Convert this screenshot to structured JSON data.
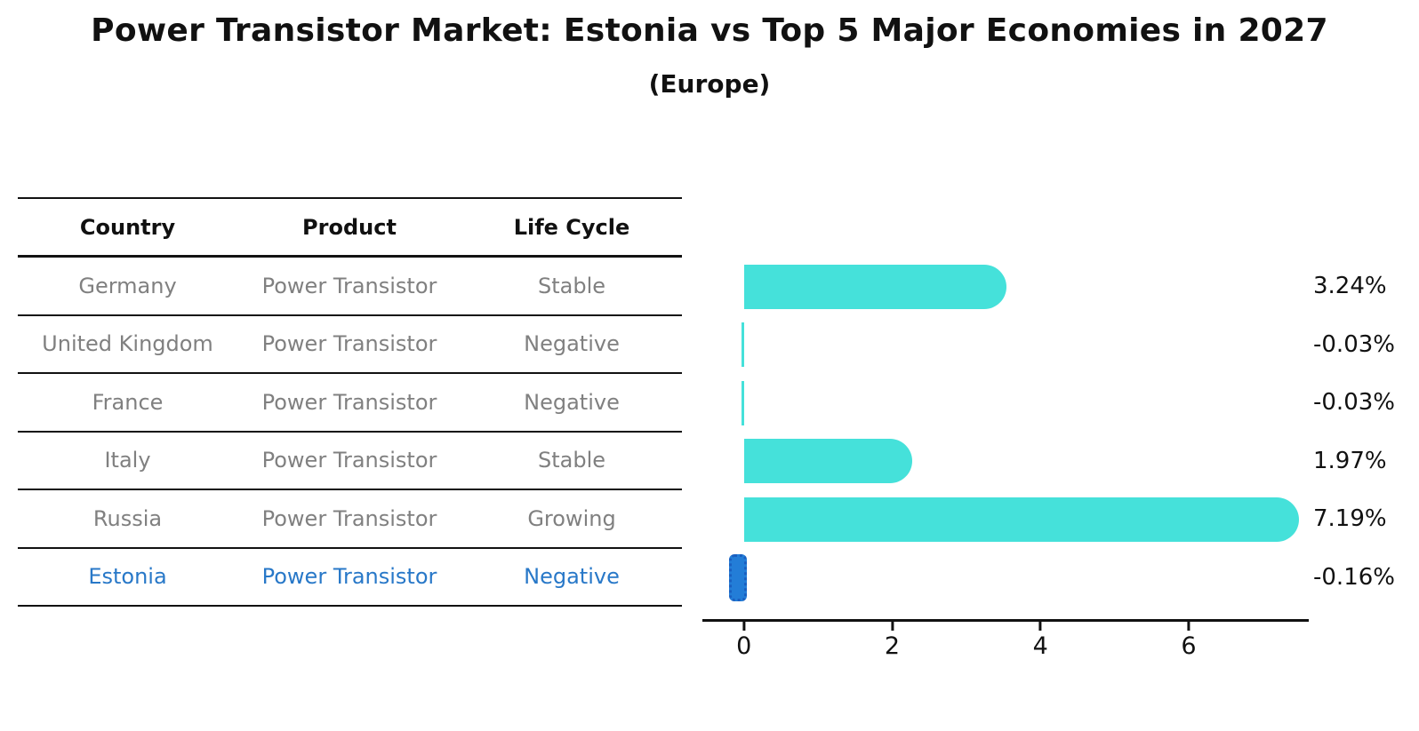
{
  "title": "Power Transistor Market: Estonia vs Top 5 Major Economies in 2027",
  "subtitle": "(Europe)",
  "table": {
    "headers": [
      "Country",
      "Product",
      "Life Cycle"
    ],
    "rows": [
      {
        "country": "Germany",
        "product": "Power Transistor",
        "life_cycle": "Stable"
      },
      {
        "country": "United Kingdom",
        "product": "Power Transistor",
        "life_cycle": "Negative"
      },
      {
        "country": "France",
        "product": "Power Transistor",
        "life_cycle": "Negative"
      },
      {
        "country": "Italy",
        "product": "Power Transistor",
        "life_cycle": "Stable"
      },
      {
        "country": "Russia",
        "product": "Power Transistor",
        "life_cycle": "Growing"
      },
      {
        "country": "Estonia",
        "product": "Power Transistor",
        "life_cycle": "Negative"
      }
    ],
    "highlight_row": "Estonia"
  },
  "chart_data": {
    "type": "bar",
    "orientation": "horizontal",
    "title": "Power Transistor Market: Estonia vs Top 5 Major Economies in 2027 (Europe)",
    "categories": [
      "Germany",
      "United Kingdom",
      "France",
      "Italy",
      "Russia",
      "Estonia"
    ],
    "values": [
      3.24,
      -0.03,
      -0.03,
      1.97,
      7.19,
      -0.16
    ],
    "bar_labels": [
      "3.24%",
      "-0.03%",
      "-0.03%",
      "1.97%",
      "7.19%",
      "-0.16%"
    ],
    "unit": "%",
    "xticks": [
      0,
      2,
      4,
      6
    ],
    "xtick_labels": [
      "0",
      "2",
      "4",
      "6"
    ],
    "xlim": [
      -0.56,
      7.62
    ],
    "grid": false,
    "legend": "none",
    "highlight_index": 5,
    "bar_color": "#45E1DA",
    "highlight_color": "#237DD7",
    "highlight_border_color": "#1A5FC0",
    "text_color": "#111111",
    "muted_text_color": "#808080",
    "highlight_text_color": "#2878C8"
  }
}
